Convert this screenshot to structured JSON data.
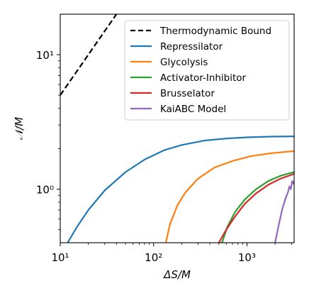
{
  "chart_data": {
    "type": "line",
    "xscale": "log",
    "yscale": "log",
    "xlabel": "ΔS/M",
    "ylabel": "𝒩/M",
    "xlim": [
      10,
      3200
    ],
    "ylim": [
      0.4,
      20
    ],
    "x_ticks": [
      {
        "value": 10,
        "label": "10¹"
      },
      {
        "value": 100,
        "label": "10²"
      },
      {
        "value": 1000,
        "label": "10³"
      }
    ],
    "y_ticks": [
      {
        "value": 1,
        "label": "10⁰"
      },
      {
        "value": 10,
        "label": "10¹"
      }
    ],
    "grid": false,
    "legend_position": "top-right",
    "series": [
      {
        "name": "Thermodynamic Bound",
        "color": "#000000",
        "dash": "dashed",
        "x": [
          10,
          20,
          30,
          40
        ],
        "y": [
          5,
          10,
          15,
          20
        ]
      },
      {
        "name": "Repressilator",
        "color": "#1f77b4",
        "x": [
          12,
          15,
          20,
          30,
          50,
          80,
          130,
          200,
          350,
          600,
          1000,
          1800,
          3200
        ],
        "y": [
          0.4,
          0.52,
          0.7,
          0.98,
          1.34,
          1.66,
          1.95,
          2.13,
          2.3,
          2.38,
          2.43,
          2.46,
          2.47
        ]
      },
      {
        "name": "Glycolysis",
        "color": "#ff7f0e",
        "x": [
          135,
          150,
          180,
          220,
          300,
          450,
          700,
          1100,
          1800,
          3200
        ],
        "y": [
          0.4,
          0.55,
          0.76,
          0.95,
          1.2,
          1.45,
          1.62,
          1.76,
          1.85,
          1.92
        ]
      },
      {
        "name": "Activator-Inhibitor",
        "color": "#2ca02c",
        "x": [
          540,
          620,
          750,
          950,
          1250,
          1700,
          2300,
          3200
        ],
        "y": [
          0.4,
          0.53,
          0.68,
          0.84,
          1.0,
          1.15,
          1.26,
          1.34
        ]
      },
      {
        "name": "Brusselator",
        "color": "#d62728",
        "x": [
          500,
          600,
          750,
          950,
          1250,
          1700,
          2300,
          3200
        ],
        "y": [
          0.4,
          0.5,
          0.63,
          0.78,
          0.93,
          1.08,
          1.2,
          1.3
        ]
      },
      {
        "name": "KaiABC Model",
        "color": "#9467bd",
        "x": [
          2000,
          2200,
          2400,
          2600,
          2750,
          2850,
          2950,
          3050,
          3150,
          3200
        ],
        "y": [
          0.4,
          0.55,
          0.72,
          0.86,
          0.95,
          1.05,
          1.0,
          1.15,
          1.1,
          1.15
        ]
      }
    ]
  }
}
